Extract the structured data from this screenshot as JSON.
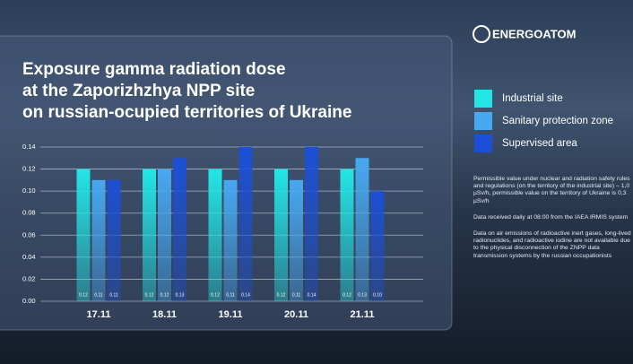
{
  "brand": "ENERGOATOM",
  "chart_data": {
    "type": "bar",
    "title": [
      "Exposure gamma radiation dose",
      "at the Zaporizhzhya NPP site",
      "on russian-ocupied territories of Ukraine"
    ],
    "categories": [
      "17.11",
      "18.11",
      "19.11",
      "20.11",
      "21.11"
    ],
    "series": [
      {
        "name": "Industrial site",
        "color": "#22e6e6",
        "values": [
          0.12,
          0.12,
          0.12,
          0.12,
          0.12
        ],
        "value_labels": [
          "0.12",
          "0.12",
          "0.12",
          "0.12",
          "0.12"
        ]
      },
      {
        "name": "Sanitary protection zone",
        "color": "#47a9f2",
        "values": [
          0.11,
          0.12,
          0.11,
          0.11,
          0.13
        ],
        "value_labels": [
          "0.11",
          "0.12",
          "0.11",
          "0.11",
          "0.13"
        ]
      },
      {
        "name": "Supervised area",
        "color": "#1c4fd6",
        "values": [
          0.11,
          0.13,
          0.14,
          0.14,
          0.1
        ],
        "value_labels": [
          "0.11",
          "0.13",
          "0.14",
          "0.14",
          "0.10"
        ]
      }
    ],
    "ylim": [
      0,
      0.14
    ],
    "yticks": [
      {
        "value": 0,
        "label": "0.00"
      },
      0.02,
      0.04,
      0.06,
      0.08,
      {
        "value": 0.1,
        "label": "0.10"
      },
      0.12,
      0.14
    ],
    "grid": true,
    "annotations": [
      "Permissible value under nuclear and radiation safety rules and regulations (on the territory of the industrial site) – 1,0 µSv/h, permissible value on the territory of Ukraine is 0,3 µSv/h",
      "Data received daily at 08:00 from the IAEA IRMIS system",
      "Data on air emissions of radioactive inert gases, long-lived radionuclides, and radioactive iodine are not available due to the physical disconnection of the ZNPP data transmission systems by the russian occupationists"
    ]
  }
}
